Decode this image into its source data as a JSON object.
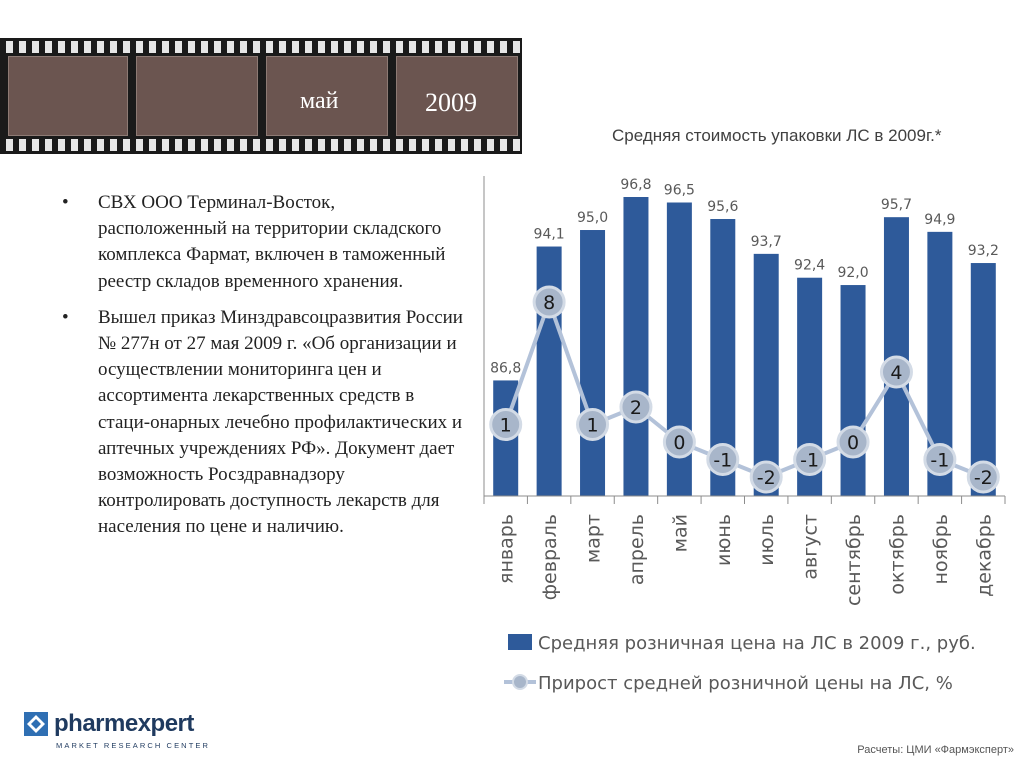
{
  "header": {
    "month": "май",
    "year": "2009"
  },
  "chart_title": "Средняя стоимость упаковки ЛС в 2009г.*",
  "bullets": [
    "СВХ ООО Терминал-Восток, расположенный на территории складского комплекса Фармат, включен в таможенный реестр складов временного хранения.",
    "Вышел приказ Минздравсоцразвития России № 277н от 27 мая 2009 г. «Об организации и осуществлении мониторинга цен и ассортимента лекарственных средств в стаци-онарных лечебно профилактических и аптечных учреждениях РФ». Документ дает возможность Росздравнадзору контролировать доступность лекарств для населения по цене и наличию."
  ],
  "logo": {
    "name": "pharmexpert",
    "subtitle": "MARKET RESEARCH CENTER"
  },
  "source": "Расчеты: ЦМИ «Фармэксперт»",
  "colors": {
    "bar": "#2e5a9a",
    "line": "#b3c2d9",
    "marker": "#a8b6ca",
    "frame": "#6b5550"
  },
  "chart_data": {
    "type": "bar",
    "categories": [
      "январь",
      "февраль",
      "март",
      "апрель",
      "май",
      "июнь",
      "июль",
      "август",
      "сентябрь",
      "октябрь",
      "ноябрь",
      "декабрь"
    ],
    "series": [
      {
        "name": "Средняя розничная цена на ЛС в 2009 г., руб.",
        "type": "bar",
        "values": [
          86.8,
          94.1,
          95.0,
          96.8,
          96.5,
          95.6,
          93.7,
          92.4,
          92.0,
          95.7,
          94.9,
          93.2
        ],
        "labels": [
          "86,8",
          "94,1",
          "95,0",
          "96,8",
          "96,5",
          "95,6",
          "93,7",
          "92,4",
          "92,0",
          "95,7",
          "94,9",
          "93,2"
        ]
      },
      {
        "name": "Прирост средней розничной цены на ЛС, %",
        "type": "line",
        "values": [
          1,
          8,
          1,
          2,
          0,
          -1,
          -2,
          -1,
          0,
          4,
          -1,
          -2
        ],
        "labels": [
          "1",
          "8",
          "1",
          "2",
          "0",
          "-1",
          "-2",
          "-1",
          "0",
          "4",
          "-1",
          "-2"
        ]
      }
    ],
    "legend_position": "bottom",
    "grid": false
  }
}
